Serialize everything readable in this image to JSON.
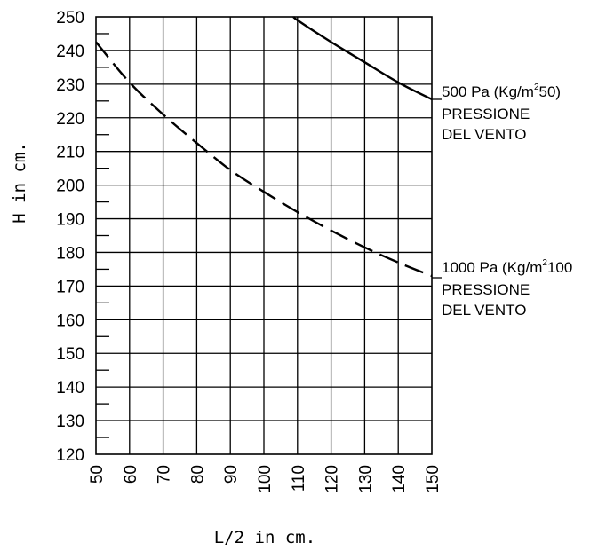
{
  "chart_data": {
    "type": "line",
    "xlabel": "L/2 in cm.",
    "ylabel": "H in cm.",
    "xlim": [
      50,
      150
    ],
    "ylim": [
      120,
      250
    ],
    "x_ticks": [
      "50",
      "60",
      "70",
      "80",
      "90",
      "100",
      "110",
      "120",
      "130",
      "140",
      "150"
    ],
    "y_ticks": [
      "250",
      "240",
      "230",
      "220",
      "210",
      "200",
      "190",
      "180",
      "170",
      "160",
      "150",
      "140",
      "130",
      "120"
    ],
    "grid": true,
    "series": [
      {
        "id": "solid",
        "style": "solid",
        "x": [
          109,
          110,
          120,
          130,
          140,
          150
        ],
        "y": [
          250,
          249,
          242.5,
          236.5,
          230.5,
          225.5
        ]
      },
      {
        "id": "dashed",
        "style": "dashed",
        "x": [
          50,
          60,
          70,
          80,
          90,
          100,
          110,
          120,
          130,
          140,
          150
        ],
        "y": [
          242.5,
          230.5,
          221,
          212.5,
          204.5,
          198,
          192,
          186.5,
          181.5,
          177,
          173
        ]
      }
    ],
    "annotations": [
      {
        "series": "solid",
        "line1_main": "500 Pa (Kg/m",
        "line1_sup": "2",
        "line1_end": "50)",
        "line2": "PRESSIONE",
        "line3": "DEL VENTO"
      },
      {
        "series": "dashed",
        "line1_main": "1000 Pa (Kg/m",
        "line1_sup": "2",
        "line1_end": "100",
        "line2": "PRESSIONE",
        "line3": "DEL VENTO"
      }
    ]
  }
}
